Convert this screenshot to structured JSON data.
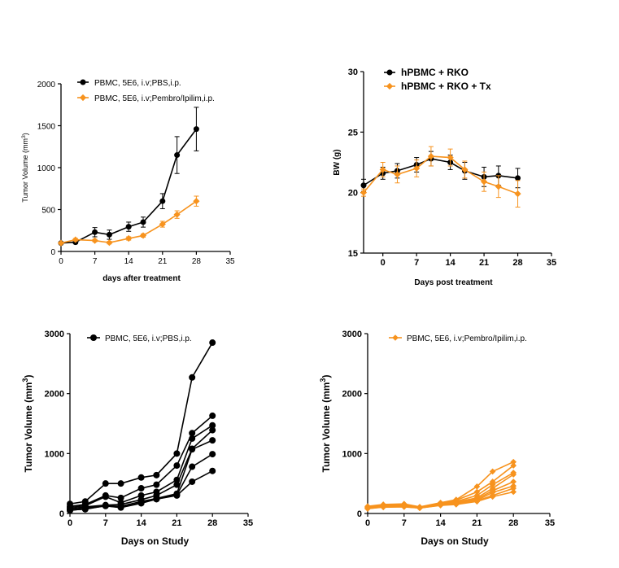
{
  "colors": {
    "black": "#000000",
    "orange": "#f7931e"
  },
  "chart_data": [
    {
      "type": "line",
      "xlabel": "days after treatment",
      "ylabel": "Tumor Volume (mm",
      "ylabel_sup": "3",
      "ylabel_close": ")",
      "xlim": [
        0,
        35
      ],
      "ylim": [
        0,
        2000
      ],
      "xticks": [
        "0",
        "7",
        "14",
        "21",
        "28",
        "35"
      ],
      "yticks": [
        "0",
        "500",
        "1000",
        "1500",
        "2000"
      ],
      "legend": "top-left",
      "series": [
        {
          "name": "PBMC, 5E6, i.v;PBS,i.p.",
          "color": "#000000",
          "x": [
            0,
            3,
            7,
            10,
            14,
            17,
            21,
            24,
            28
          ],
          "y": [
            100,
            110,
            230,
            200,
            295,
            350,
            600,
            1150,
            1460
          ],
          "err": [
            10,
            15,
            55,
            55,
            55,
            60,
            90,
            220,
            260
          ]
        },
        {
          "name": "PBMC, 5E6, i.v;Pembro/Ipilim,i.p.",
          "color": "#f7931e",
          "x": [
            0,
            3,
            7,
            10,
            14,
            17,
            21,
            24,
            28
          ],
          "y": [
            100,
            140,
            130,
            105,
            155,
            190,
            325,
            440,
            600
          ],
          "err": [
            10,
            15,
            15,
            15,
            20,
            20,
            35,
            45,
            60
          ]
        }
      ]
    },
    {
      "type": "line",
      "xlabel": "Days post treatment",
      "ylabel": "BW (g)",
      "xlim": [
        -4,
        35
      ],
      "ylim": [
        15,
        30
      ],
      "xticks": [
        "0",
        "7",
        "14",
        "21",
        "28",
        "35"
      ],
      "yticks": [
        "15",
        "20",
        "25",
        "30"
      ],
      "legend": "top-left",
      "series": [
        {
          "name": "hPBMC + RKO",
          "color": "#000000",
          "x": [
            -4,
            0,
            3,
            7,
            10,
            14,
            17,
            21,
            24,
            28
          ],
          "y": [
            20.6,
            21.6,
            21.8,
            22.3,
            22.8,
            22.5,
            21.8,
            21.3,
            21.4,
            21.2
          ],
          "err": [
            0.5,
            0.5,
            0.6,
            0.6,
            0.6,
            0.6,
            0.7,
            0.8,
            0.8,
            0.8
          ]
        },
        {
          "name": "hPBMC + RKO + Tx",
          "color": "#f7931e",
          "x": [
            -4,
            0,
            3,
            7,
            10,
            14,
            17,
            21,
            24,
            28
          ],
          "y": [
            20.0,
            21.9,
            21.5,
            22.0,
            23.0,
            22.9,
            21.9,
            20.9,
            20.5,
            19.9
          ],
          "err": [
            0.3,
            0.6,
            0.7,
            0.7,
            0.8,
            0.7,
            0.7,
            0.8,
            0.9,
            1.1
          ]
        }
      ]
    },
    {
      "type": "line",
      "xlabel": "Days on Study",
      "ylabel": "Tumor Volume (mm",
      "ylabel_sup": "3",
      "ylabel_close": ")",
      "xlim": [
        0,
        35
      ],
      "ylim": [
        0,
        3000
      ],
      "xticks": [
        "0",
        "7",
        "14",
        "21",
        "28",
        "35"
      ],
      "yticks": [
        "0",
        "1000",
        "2000",
        "3000"
      ],
      "legend": "top-left",
      "legend_label": "PBMC, 5E6, i.v;PBS,i.p.",
      "color": "#000000",
      "x": [
        0,
        3,
        7,
        10,
        14,
        17,
        21,
        24,
        28
      ],
      "series": [
        {
          "values": [
            160,
            200,
            500,
            500,
            600,
            640,
            1000,
            2270,
            2850
          ]
        },
        {
          "values": [
            120,
            150,
            300,
            260,
            420,
            480,
            800,
            1340,
            1630
          ]
        },
        {
          "values": [
            100,
            130,
            280,
            180,
            300,
            360,
            560,
            1250,
            1470
          ]
        },
        {
          "values": [
            80,
            110,
            140,
            150,
            230,
            300,
            480,
            1080,
            1390
          ]
        },
        {
          "values": [
            60,
            90,
            130,
            120,
            200,
            250,
            330,
            1070,
            1220
          ]
        },
        {
          "values": [
            50,
            80,
            125,
            100,
            180,
            240,
            310,
            780,
            990
          ]
        },
        {
          "values": [
            60,
            70,
            130,
            100,
            170,
            240,
            300,
            530,
            710
          ]
        }
      ]
    },
    {
      "type": "line",
      "xlabel": "Days on Study",
      "ylabel": "Tumor Volume (mm",
      "ylabel_sup": "3",
      "ylabel_close": ")",
      "xlim": [
        0,
        35
      ],
      "ylim": [
        0,
        3000
      ],
      "xticks": [
        "0",
        "7",
        "14",
        "21",
        "28",
        "35"
      ],
      "yticks": [
        "0",
        "1000",
        "2000",
        "3000"
      ],
      "legend": "top-left",
      "legend_label": "PBMC, 5E6, i.v;Pembro/Ipilim,i.p.",
      "color": "#f7931e",
      "x": [
        0,
        3,
        7,
        10,
        14,
        17,
        21,
        24,
        28
      ],
      "series": [
        {
          "values": [
            120,
            150,
            160,
            110,
            180,
            230,
            450,
            700,
            860
          ]
        },
        {
          "values": [
            110,
            140,
            150,
            105,
            170,
            220,
            360,
            530,
            800
          ]
        },
        {
          "values": [
            100,
            130,
            140,
            100,
            160,
            200,
            300,
            480,
            680
          ]
        },
        {
          "values": [
            100,
            125,
            130,
            100,
            155,
            190,
            260,
            420,
            650
          ]
        },
        {
          "values": [
            90,
            120,
            125,
            95,
            150,
            180,
            240,
            380,
            530
          ]
        },
        {
          "values": [
            90,
            115,
            120,
            95,
            145,
            170,
            220,
            350,
            460
          ]
        },
        {
          "values": [
            80,
            110,
            115,
            90,
            140,
            160,
            210,
            300,
            420
          ]
        },
        {
          "values": [
            80,
            105,
            110,
            90,
            135,
            150,
            200,
            280,
            360
          ]
        }
      ]
    }
  ]
}
